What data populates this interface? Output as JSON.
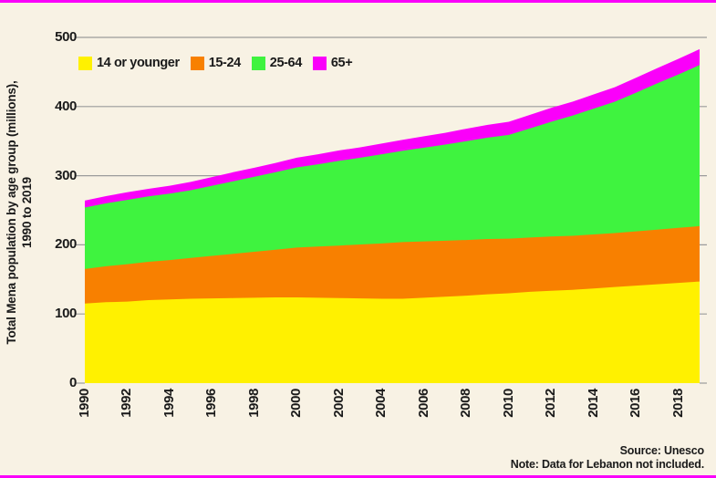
{
  "page": {
    "background": "#F8F2E4",
    "accent_color": "#FA00FA",
    "gridline_color": "#9B9B9B",
    "text_color": "#1a1a1a"
  },
  "chart_data": {
    "type": "area",
    "stacked": true,
    "ylabel_line1": "Total Mena population by age group (millions),",
    "ylabel_line2": "1990 to 2019",
    "x": [
      1990,
      1991,
      1992,
      1993,
      1994,
      1995,
      1996,
      1997,
      1998,
      1999,
      2000,
      2001,
      2002,
      2003,
      2004,
      2005,
      2006,
      2007,
      2008,
      2009,
      2010,
      2011,
      2012,
      2013,
      2014,
      2015,
      2016,
      2017,
      2018,
      2019
    ],
    "x_tick_labels": [
      "1990",
      "1992",
      "1994",
      "1996",
      "1998",
      "2000",
      "2002",
      "2004",
      "2006",
      "2008",
      "2010",
      "2012",
      "2014",
      "2016",
      "2018"
    ],
    "y_ticks": [
      0,
      100,
      200,
      300,
      400,
      500
    ],
    "y_tick_labels": [
      "0",
      "100",
      "200",
      "300",
      "400",
      "500"
    ],
    "ylim": [
      0,
      500
    ],
    "grid": true,
    "legend_position": "top-left-inside",
    "series": [
      {
        "name": "14 or younger",
        "color": "#FFF100",
        "values": [
          115,
          117,
          118,
          120,
          121,
          122,
          122.5,
          123,
          123.5,
          124,
          124,
          123.5,
          123,
          122.5,
          122,
          122,
          123.5,
          125,
          126.5,
          128.5,
          130,
          132,
          133.5,
          135,
          137,
          139,
          141,
          143,
          145,
          147
        ]
      },
      {
        "name": "15-24",
        "color": "#F88000",
        "values": [
          50,
          52,
          54,
          55.5,
          57,
          59,
          61.5,
          64,
          66.5,
          69,
          72,
          74,
          76,
          78,
          80,
          82,
          81.5,
          81,
          80.5,
          80,
          79,
          78.5,
          78.5,
          78,
          78,
          78,
          78.5,
          79,
          79.5,
          80
        ]
      },
      {
        "name": "25-64",
        "color": "#3FF33F",
        "values": [
          89,
          91,
          93,
          94.5,
          96,
          98,
          101.5,
          105,
          108.5,
          112,
          116,
          119,
          122.5,
          125.5,
          129,
          132,
          135.5,
          139,
          143,
          146.5,
          150,
          158,
          166,
          174,
          182,
          190,
          200.5,
          211.5,
          222,
          233
        ]
      },
      {
        "name": "65+",
        "color": "#FA00FA",
        "values": [
          10,
          10.5,
          11,
          11,
          11.5,
          12,
          12.5,
          13,
          13,
          13.5,
          14,
          14.5,
          15,
          15,
          15.5,
          16,
          16.5,
          17,
          18,
          18.5,
          19,
          19.5,
          20,
          20,
          20.5,
          21,
          21.5,
          22,
          22.5,
          23
        ]
      }
    ]
  },
  "footer": {
    "source": "Source: Unesco",
    "note": "Note: Data for Lebanon not included."
  }
}
